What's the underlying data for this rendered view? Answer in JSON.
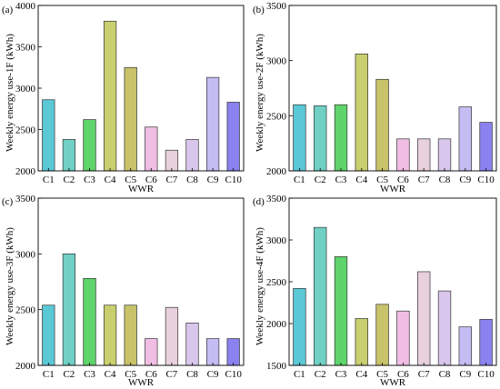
{
  "colors": [
    "#5bc8d6",
    "#6fd0c3",
    "#5ed46a",
    "#c9cf6e",
    "#c8c26a",
    "#f0bde3",
    "#e8d0dc",
    "#d9c6ec",
    "#c4bdf3",
    "#8a82ee"
  ],
  "chart_data": [
    {
      "type": "bar",
      "panel": "(a)",
      "ylabel": "Weekly energy use-1F (kWh)",
      "xlabel": "WWR",
      "categories": [
        "C1",
        "C2",
        "C3",
        "C4",
        "C5",
        "C6",
        "C7",
        "C8",
        "C9",
        "C10"
      ],
      "values": [
        2860,
        2380,
        2620,
        3810,
        3250,
        2530,
        2250,
        2380,
        3130,
        2830
      ],
      "ylim": [
        2000,
        4000
      ],
      "yticks": [
        2000,
        2500,
        3000,
        3500,
        4000
      ]
    },
    {
      "type": "bar",
      "panel": "(b)",
      "ylabel": "Weekly energy use-2F (kWh)",
      "xlabel": "WWR",
      "categories": [
        "C1",
        "C2",
        "C3",
        "C4",
        "C5",
        "C6",
        "C7",
        "C8",
        "C9",
        "C10"
      ],
      "values": [
        2600,
        2590,
        2600,
        3060,
        2830,
        2290,
        2290,
        2290,
        2580,
        2440
      ],
      "ylim": [
        2000,
        3500
      ],
      "yticks": [
        2000,
        2500,
        3000,
        3500
      ]
    },
    {
      "type": "bar",
      "panel": "(c)",
      "ylabel": "Weekly energy use-3F (kWh)",
      "xlabel": "WWR",
      "categories": [
        "C1",
        "C2",
        "C3",
        "C4",
        "C5",
        "C6",
        "C7",
        "C8",
        "C9",
        "C10"
      ],
      "values": [
        2540,
        3000,
        2780,
        2540,
        2540,
        2240,
        2520,
        2380,
        2240,
        2240
      ],
      "ylim": [
        2000,
        3500
      ],
      "yticks": [
        2000,
        2500,
        3000,
        3500
      ]
    },
    {
      "type": "bar",
      "panel": "(d)",
      "ylabel": "Weekly energy use-4F (kWh)",
      "xlabel": "WWR",
      "categories": [
        "C1",
        "C2",
        "C3",
        "C4",
        "C5",
        "C6",
        "C7",
        "C8",
        "C9",
        "C10"
      ],
      "values": [
        2420,
        3150,
        2800,
        2060,
        2230,
        2150,
        2620,
        2390,
        1960,
        2050
      ],
      "ylim": [
        1500,
        3500
      ],
      "yticks": [
        1500,
        2000,
        2500,
        3000,
        3500
      ]
    }
  ]
}
